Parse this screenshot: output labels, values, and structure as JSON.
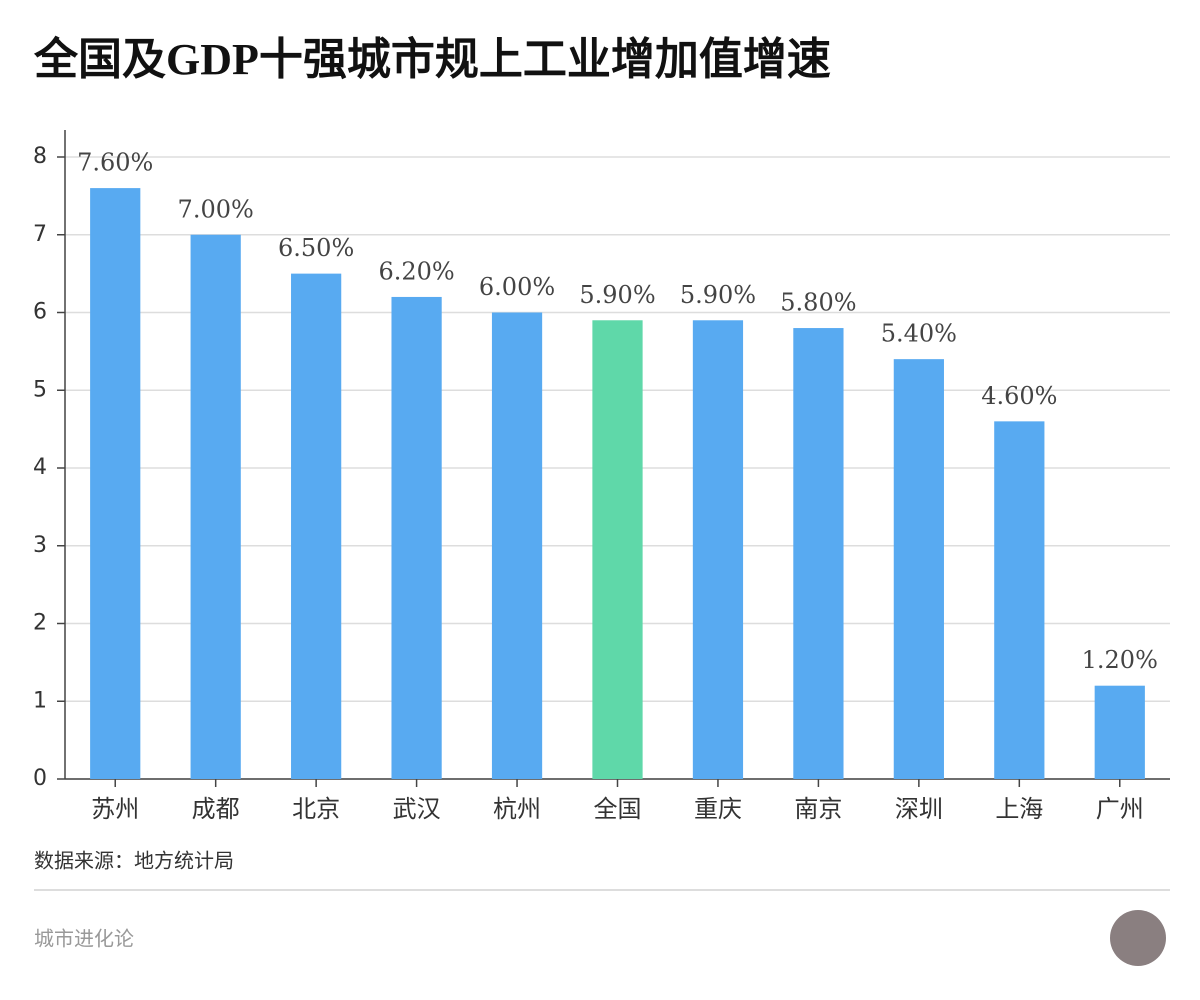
{
  "chart_data": {
    "type": "bar",
    "title": "全国及GDP十强城市规上工业增加值增速",
    "categories": [
      "苏州",
      "成都",
      "北京",
      "武汉",
      "杭州",
      "全国",
      "重庆",
      "南京",
      "深圳",
      "上海",
      "广州"
    ],
    "values": [
      7.6,
      7.0,
      6.5,
      6.2,
      6.0,
      5.9,
      5.9,
      5.8,
      5.4,
      4.6,
      1.2
    ],
    "value_labels": [
      "7.60%",
      "7.00%",
      "6.50%",
      "6.20%",
      "6.00%",
      "5.90%",
      "5.90%",
      "5.80%",
      "5.40%",
      "4.60%",
      "1.20%"
    ],
    "colors": [
      "#58aaf1",
      "#58aaf1",
      "#58aaf1",
      "#58aaf1",
      "#58aaf1",
      "#5fd8a9",
      "#58aaf1",
      "#58aaf1",
      "#58aaf1",
      "#58aaf1",
      "#58aaf1"
    ],
    "ylim": [
      0,
      8
    ],
    "yticks": [
      0,
      1,
      2,
      3,
      4,
      5,
      6,
      7,
      8
    ],
    "grid": true,
    "source": "数据来源：地方统计局",
    "footer": "城市进化论"
  }
}
